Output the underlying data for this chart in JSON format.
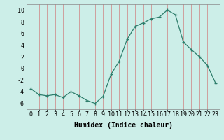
{
  "x": [
    0,
    1,
    2,
    3,
    4,
    5,
    6,
    7,
    8,
    9,
    10,
    11,
    12,
    13,
    14,
    15,
    16,
    17,
    18,
    19,
    20,
    21,
    22,
    23
  ],
  "y": [
    -3.5,
    -4.5,
    -4.7,
    -4.5,
    -5.0,
    -4.0,
    -4.7,
    -5.5,
    -6.0,
    -4.8,
    -1.0,
    1.2,
    5.0,
    7.2,
    7.8,
    8.5,
    8.8,
    10.0,
    9.2,
    4.5,
    3.2,
    2.0,
    0.5,
    -2.5
  ],
  "xlabel": "Humidex (Indice chaleur)",
  "ylim": [
    -7,
    11
  ],
  "yticks": [
    -6,
    -4,
    -2,
    0,
    2,
    4,
    6,
    8,
    10
  ],
  "line_color": "#2d7d6b",
  "bg_color": "#cceee8",
  "grid_color_v": "#d08080",
  "grid_color_h": "#e0b0b0",
  "fig_bg": "#cceee8",
  "label_fontsize": 7,
  "tick_fontsize": 6
}
